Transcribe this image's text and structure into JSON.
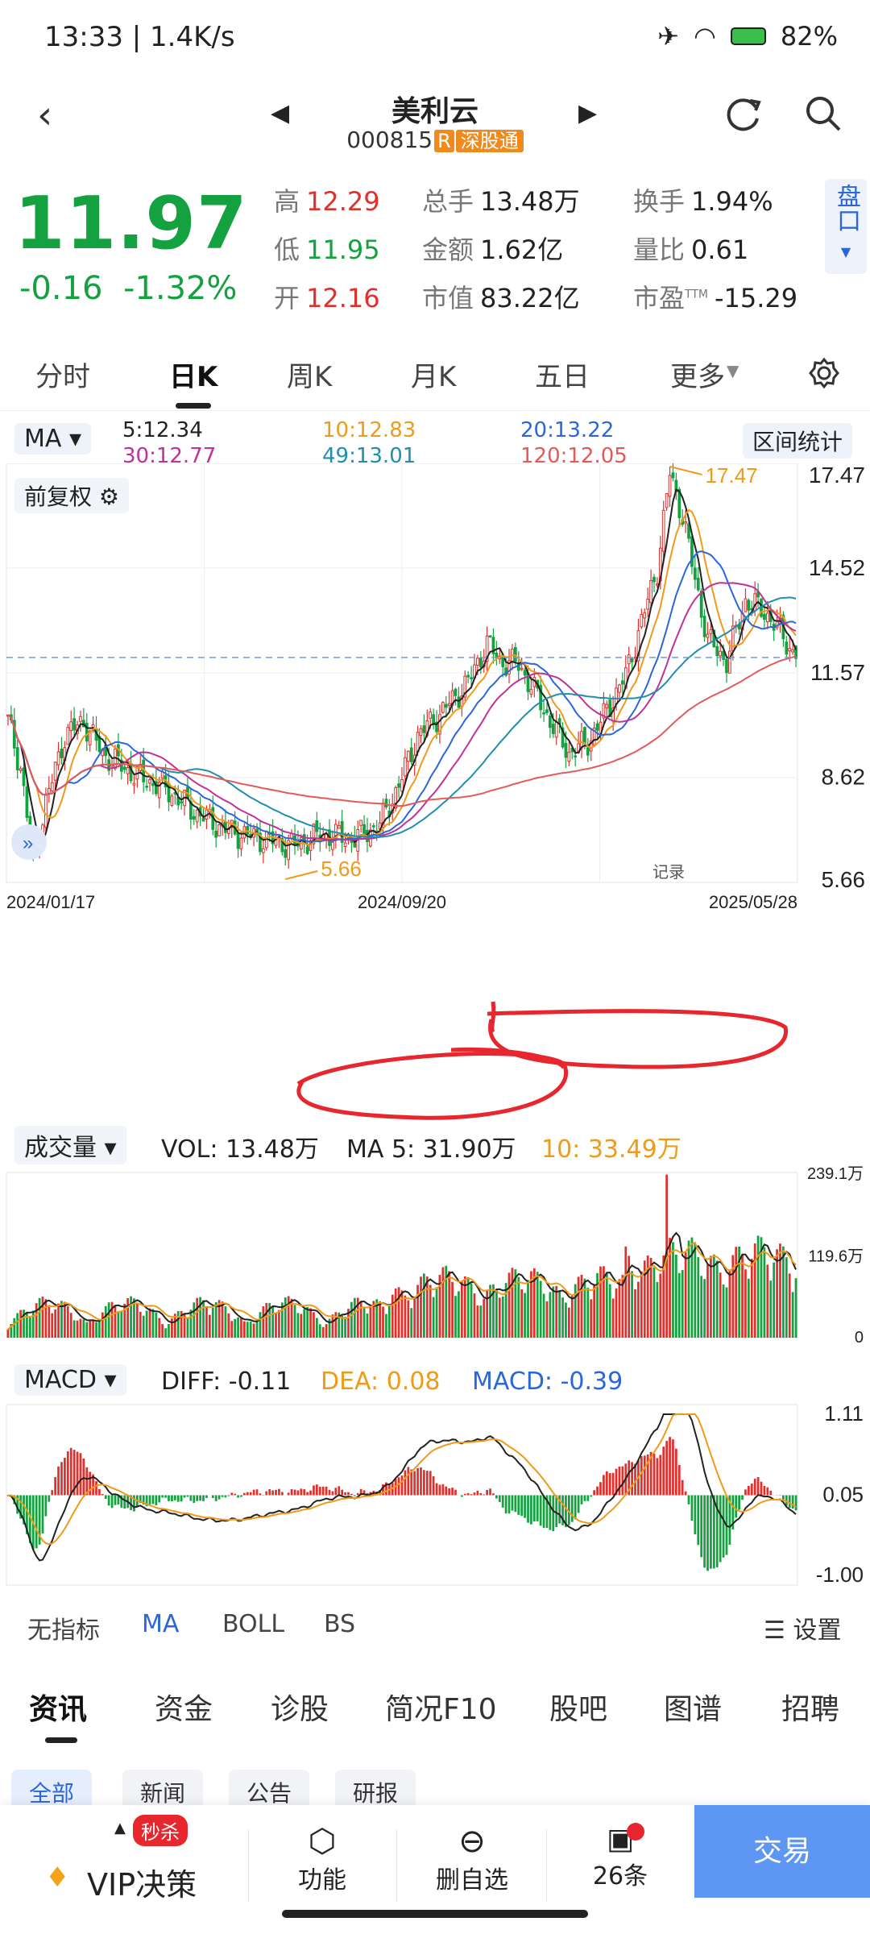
{
  "status_bar": {
    "time": "13:33 | 1.4K/s",
    "battery": "82%"
  },
  "header": {
    "stock_name": "美利云",
    "stock_code": "000815",
    "tag_r": "R",
    "tag_connect": "深股通"
  },
  "quote": {
    "price": "11.97",
    "change": "-0.16",
    "change_pct": "-1.32%",
    "stats": [
      {
        "label": "高",
        "value": "12.29",
        "color": "red"
      },
      {
        "label": "总手",
        "value": "13.48万",
        "color": "dark"
      },
      {
        "label": "换手",
        "value": "1.94%",
        "color": "dark"
      },
      {
        "label": "低",
        "value": "11.95",
        "color": "green"
      },
      {
        "label": "金额",
        "value": "1.62亿",
        "color": "dark"
      },
      {
        "label": "量比",
        "value": "0.61",
        "color": "dark"
      },
      {
        "label": "开",
        "value": "12.16",
        "color": "red"
      },
      {
        "label": "市值",
        "value": "83.22亿",
        "color": "dark"
      },
      {
        "label": "市盈",
        "value": "-15.29",
        "color": "dark",
        "sup": "TTM"
      }
    ],
    "pankou": "盘口"
  },
  "period_tabs": [
    "分时",
    "日K",
    "周K",
    "月K",
    "五日",
    "更多"
  ],
  "active_period": "日K",
  "ma_panel": {
    "button": "MA",
    "ma5": "5:12.34",
    "ma10": "10:12.83",
    "ma20": "20:13.22",
    "ma30": "30:12.77",
    "ma49": "49:13.01",
    "ma120": "120:12.05",
    "range_stats": "区间统计",
    "adjust": "前复权",
    "colors": {
      "ma5": "#222222",
      "ma10": "#f09a1a",
      "ma20": "#2b67d8",
      "ma30": "#c0319a",
      "ma49": "#1f8fae",
      "ma120": "#e35a5a"
    }
  },
  "chart_data": [
    {
      "type": "candlestick",
      "price_axis": [
        "17.47",
        "14.52",
        "11.57",
        "8.62",
        "5.66"
      ],
      "ylim": [
        5.66,
        17.47
      ],
      "x_labels": [
        "2024/01/17",
        "2024/09/20",
        "2025/05/28"
      ],
      "annotations": {
        "high": "17.47",
        "low": "5.66",
        "last_price_line": 12.0,
        "extra_icon_text": "记录"
      },
      "close_path": [
        [
          0,
          10.2
        ],
        [
          4,
          8.9
        ],
        [
          8,
          6.2
        ],
        [
          12,
          7.9
        ],
        [
          18,
          9.8
        ],
        [
          24,
          10.2
        ],
        [
          30,
          9.3
        ],
        [
          40,
          8.7
        ],
        [
          50,
          8.3
        ],
        [
          60,
          7.6
        ],
        [
          70,
          7.1
        ],
        [
          80,
          6.9
        ],
        [
          90,
          6.7
        ],
        [
          100,
          7.0
        ],
        [
          110,
          6.9
        ],
        [
          118,
          7.3
        ],
        [
          124,
          8.4
        ],
        [
          130,
          9.8
        ],
        [
          138,
          10.5
        ],
        [
          146,
          11.3
        ],
        [
          152,
          12.4
        ],
        [
          156,
          11.9
        ],
        [
          162,
          11.8
        ],
        [
          168,
          10.9
        ],
        [
          172,
          10.2
        ],
        [
          178,
          9.3
        ],
        [
          184,
          9.6
        ],
        [
          190,
          10.5
        ],
        [
          196,
          11.5
        ],
        [
          202,
          13.3
        ],
        [
          206,
          14.5
        ],
        [
          210,
          17.2
        ],
        [
          214,
          16.0
        ],
        [
          218,
          14.2
        ],
        [
          222,
          12.5
        ],
        [
          228,
          11.9
        ],
        [
          234,
          13.6
        ],
        [
          240,
          13.3
        ],
        [
          246,
          12.6
        ],
        [
          250,
          11.97
        ]
      ]
    },
    {
      "type": "bar",
      "name": "成交量",
      "vol": "VOL: 13.48万",
      "ma5": "MA 5: 31.90万",
      "ma10": "10: 33.49万",
      "axis": [
        "239.1万",
        "119.6万",
        "0"
      ],
      "ylim": [
        0,
        239.1
      ]
    },
    {
      "type": "bar",
      "name": "MACD",
      "diff": "DIFF: -0.11",
      "dea": "DEA: 0.08",
      "macd": "MACD: -0.39",
      "axis": [
        "1.11",
        "0.05",
        "-1.00"
      ],
      "ylim": [
        -1.0,
        1.11
      ]
    }
  ],
  "indicator_tabs": [
    "无指标",
    "MA",
    "BOLL",
    "BS"
  ],
  "active_indicator": "MA",
  "settings": "设置",
  "news_tabs": [
    "资讯",
    "资金",
    "诊股",
    "简况F10",
    "股吧",
    "图谱",
    "招聘"
  ],
  "news_subtabs": [
    "全部",
    "新闻",
    "公告",
    "研报"
  ],
  "bottom_bar": {
    "vip_badge": "秒杀",
    "vip": "VIP决策",
    "func": "功能",
    "remove": "删自选",
    "ask": "26条",
    "trade": "交易"
  }
}
